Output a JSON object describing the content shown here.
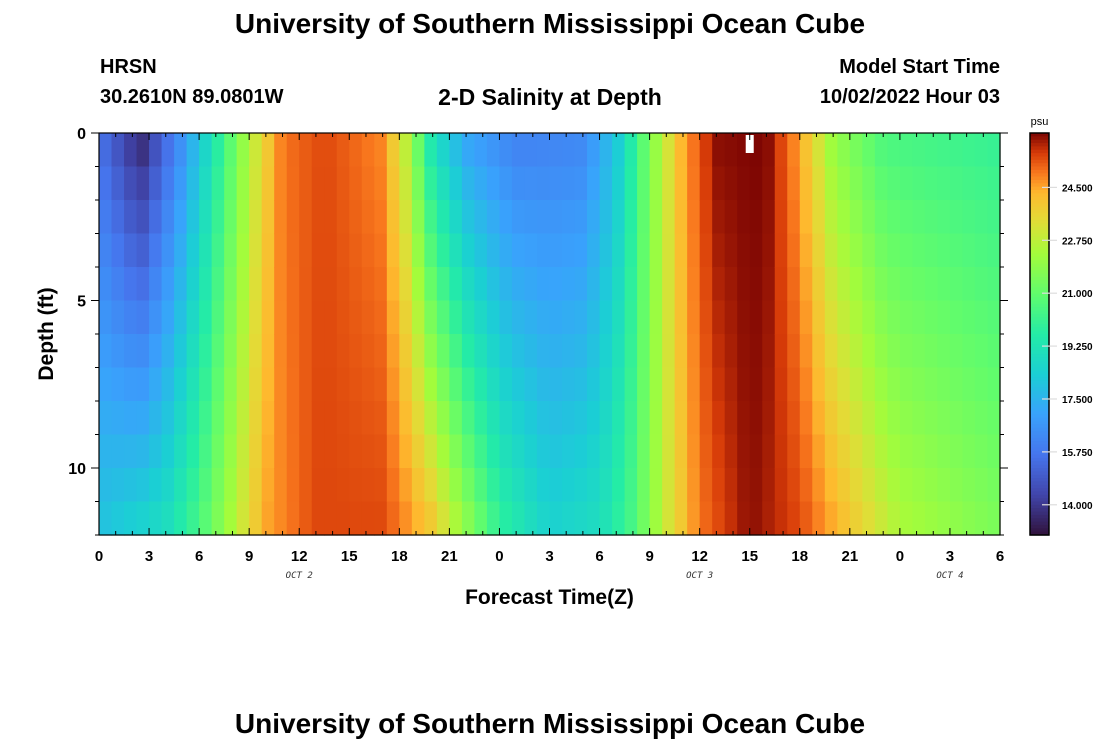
{
  "header": {
    "title": "University of Southern Mississippi Ocean Cube",
    "station": "HRSN",
    "coords": "30.2610N  89.0801W",
    "plot_title": "2-D Salinity at Depth",
    "model_label": "Model Start Time",
    "model_time": "10/02/2022 Hour 03"
  },
  "footer": {
    "title": "University of Southern Mississippi Ocean Cube"
  },
  "chart_data": {
    "type": "heatmap",
    "title": "2-D Salinity at Depth",
    "xlabel": "Forecast Time(Z)",
    "ylabel": "Depth (ft)",
    "x_tick_labels": [
      "0",
      "3",
      "6",
      "9",
      "12",
      "15",
      "18",
      "21",
      "0",
      "3",
      "6",
      "9",
      "12",
      "15",
      "18",
      "21",
      "0",
      "3",
      "6"
    ],
    "x_range_hours": [
      0,
      54
    ],
    "date_labels": [
      {
        "label": "OCT 2",
        "hour": 12
      },
      {
        "label": "OCT 3",
        "hour": 36
      },
      {
        "label": "OCT 4",
        "hour": 51
      }
    ],
    "y_ticks": [
      0,
      5,
      10
    ],
    "y_range_ft": [
      0,
      12
    ],
    "colorbar": {
      "unit": "psu",
      "range": [
        13.0,
        26.3
      ],
      "tick_values": [
        14.0,
        15.75,
        17.5,
        19.25,
        21.0,
        22.75,
        24.5
      ],
      "tick_labels": [
        "14.000",
        "15.750",
        "17.500",
        "19.250",
        "21.000",
        "22.750",
        "24.500"
      ]
    },
    "surface_profile_psu": [
      {
        "hour": 0,
        "value": 15.6
      },
      {
        "hour": 2.5,
        "value": 13.5
      },
      {
        "hour": 5,
        "value": 16.5
      },
      {
        "hour": 7,
        "value": 19.5
      },
      {
        "hour": 9,
        "value": 22.5
      },
      {
        "hour": 11,
        "value": 25.0
      },
      {
        "hour": 13.5,
        "value": 25.5
      },
      {
        "hour": 17,
        "value": 24.8
      },
      {
        "hour": 18.5,
        "value": 22.5
      },
      {
        "hour": 20,
        "value": 19.0
      },
      {
        "hour": 22,
        "value": 17.0
      },
      {
        "hour": 25,
        "value": 16.0
      },
      {
        "hour": 29,
        "value": 16.2
      },
      {
        "hour": 31,
        "value": 18.0
      },
      {
        "hour": 33,
        "value": 21.5
      },
      {
        "hour": 35,
        "value": 24.5
      },
      {
        "hour": 37,
        "value": 26.2
      },
      {
        "hour": 40,
        "value": 26.3
      },
      {
        "hour": 42,
        "value": 24.5
      },
      {
        "hour": 44,
        "value": 22.0
      },
      {
        "hour": 47,
        "value": 20.5
      },
      {
        "hour": 54,
        "value": 20.0
      }
    ],
    "bottom_profile_psu": [
      {
        "hour": 0,
        "value": 18.0
      },
      {
        "hour": 4,
        "value": 19.0
      },
      {
        "hour": 6,
        "value": 20.5
      },
      {
        "hour": 8,
        "value": 22.5
      },
      {
        "hour": 10,
        "value": 24.5
      },
      {
        "hour": 13,
        "value": 25.5
      },
      {
        "hour": 17,
        "value": 25.5
      },
      {
        "hour": 20,
        "value": 24.0
      },
      {
        "hour": 22,
        "value": 22.0
      },
      {
        "hour": 24,
        "value": 20.0
      },
      {
        "hour": 27,
        "value": 18.5
      },
      {
        "hour": 30,
        "value": 19.0
      },
      {
        "hour": 32,
        "value": 20.5
      },
      {
        "hour": 34,
        "value": 23.0
      },
      {
        "hour": 36,
        "value": 25.0
      },
      {
        "hour": 39,
        "value": 26.2
      },
      {
        "hour": 42,
        "value": 25.5
      },
      {
        "hour": 45,
        "value": 24.0
      },
      {
        "hour": 48,
        "value": 22.5
      },
      {
        "hour": 54,
        "value": 21.5
      }
    ]
  }
}
